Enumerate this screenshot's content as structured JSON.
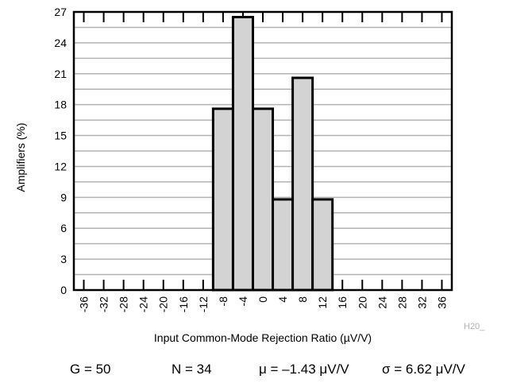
{
  "chart_data": {
    "type": "bar",
    "title": "",
    "xlabel": "Input Common-Mode Rejection Ratio (µV/V)",
    "ylabel": "Amplifiers (%)",
    "xlim": [
      -38,
      38
    ],
    "ylim": [
      0,
      27
    ],
    "grid": "horizontal",
    "bin_width": 4,
    "bin_centers": [
      -36,
      -32,
      -28,
      -24,
      -20,
      -16,
      -12,
      -8,
      -4,
      0,
      4,
      8,
      12,
      16,
      20,
      24,
      28,
      32,
      36
    ],
    "values": [
      0,
      0,
      0,
      0,
      0,
      0,
      0,
      17.6,
      26.5,
      17.6,
      8.8,
      20.6,
      8.8,
      0,
      0,
      0,
      0,
      0,
      0
    ],
    "x_tick_labels": [
      "-36",
      "-32",
      "-28",
      "-24",
      "-20",
      "-16",
      "-12",
      "-8",
      "-4",
      "0",
      "4",
      "8",
      "12",
      "16",
      "20",
      "24",
      "28",
      "32",
      "36"
    ],
    "y_ticks": [
      0,
      3,
      6,
      9,
      12,
      15,
      18,
      21,
      24,
      27
    ],
    "grid_step": 1.5,
    "bar_color": "#d3d3d3",
    "edge_color": "#000000"
  },
  "figure_id": "H20_",
  "stats": {
    "gain": "G = 50",
    "n": "N = 34",
    "mean": "μ = –1.43 μV/V",
    "sigma": "σ = 6.62 μV/V"
  }
}
